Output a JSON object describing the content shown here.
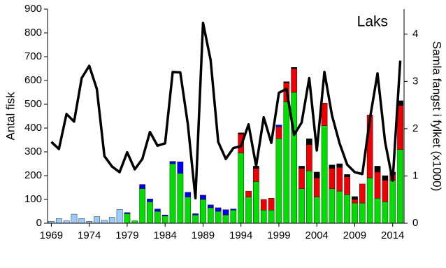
{
  "chart_data": {
    "type": "bar",
    "annotation": "Laks",
    "ylabel": "Antal fisk",
    "y2label": "Samla fangst i fylket (x1000)",
    "categories": [
      "1969",
      null,
      null,
      null,
      null,
      "1974",
      null,
      null,
      null,
      null,
      "1979",
      null,
      null,
      null,
      null,
      "1984",
      null,
      null,
      null,
      null,
      "1989",
      null,
      null,
      null,
      null,
      "1994",
      null,
      null,
      null,
      null,
      "1999",
      null,
      null,
      null,
      null,
      "2004",
      null,
      null,
      null,
      null,
      "2009",
      null,
      null,
      null,
      null,
      "2014",
      null
    ],
    "series": [
      {
        "color": "#99ccff",
        "values": [
          8,
          20,
          10,
          38,
          20,
          8,
          28,
          12,
          25,
          58,
          0,
          0,
          0,
          0,
          0,
          0,
          0,
          0,
          0,
          0,
          0,
          0,
          0,
          0,
          0,
          0,
          0,
          0,
          0,
          0,
          0,
          0,
          0,
          0,
          0,
          0,
          0,
          0,
          0,
          0,
          0,
          0,
          0,
          0,
          0,
          0,
          0
        ]
      },
      {
        "color": "#00dd00",
        "values": [
          0,
          0,
          0,
          0,
          0,
          0,
          0,
          0,
          0,
          0,
          40,
          10,
          145,
          90,
          50,
          30,
          250,
          210,
          110,
          35,
          100,
          65,
          50,
          35,
          55,
          295,
          110,
          175,
          55,
          55,
          355,
          510,
          550,
          145,
          220,
          110,
          410,
          145,
          135,
          120,
          85,
          85,
          190,
          105,
          90,
          180,
          310
        ]
      },
      {
        "color": "#ee0000",
        "values": [
          0,
          0,
          0,
          0,
          0,
          0,
          0,
          0,
          0,
          0,
          0,
          0,
          0,
          0,
          0,
          0,
          0,
          0,
          0,
          0,
          0,
          0,
          0,
          0,
          0,
          80,
          25,
          55,
          45,
          50,
          50,
          80,
          100,
          85,
          110,
          80,
          95,
          85,
          100,
          75,
          15,
          80,
          265,
          110,
          90,
          25,
          185
        ]
      },
      {
        "color": "#0000ee",
        "values": [
          0,
          0,
          0,
          0,
          0,
          0,
          0,
          0,
          0,
          0,
          5,
          0,
          18,
          12,
          10,
          5,
          10,
          48,
          20,
          5,
          18,
          12,
          15,
          22,
          5,
          0,
          0,
          0,
          0,
          0,
          8,
          0,
          0,
          0,
          0,
          0,
          0,
          0,
          0,
          0,
          0,
          0,
          0,
          0,
          0,
          0,
          0
        ]
      },
      {
        "color": "#000000",
        "values": [
          0,
          0,
          0,
          0,
          0,
          0,
          0,
          0,
          0,
          0,
          0,
          0,
          0,
          0,
          0,
          0,
          0,
          0,
          0,
          0,
          0,
          0,
          0,
          0,
          0,
          5,
          0,
          10,
          0,
          0,
          0,
          5,
          5,
          10,
          25,
          25,
          0,
          15,
          15,
          10,
          12,
          0,
          0,
          25,
          20,
          10,
          20
        ]
      },
      {
        "type": "line",
        "axis": "y2",
        "color": "#000000",
        "values": [
          1.72,
          1.57,
          2.31,
          2.15,
          3.07,
          3.33,
          2.84,
          1.42,
          1.2,
          1.08,
          1.5,
          1.14,
          1.36,
          1.93,
          1.64,
          1.69,
          3.2,
          3.19,
          2.09,
          0.53,
          4.24,
          3.45,
          1.72,
          1.36,
          1.59,
          1.63,
          2.09,
          1.21,
          2.24,
          1.7,
          2.76,
          2.84,
          1.87,
          2.13,
          3.07,
          1.54,
          3.2,
          2.28,
          1.69,
          1.24,
          1.08,
          1.04,
          2.21,
          3.17,
          1.72,
          0.9,
          3.44
        ]
      }
    ],
    "ylim": [
      0,
      900
    ],
    "yticks": [
      0,
      100,
      200,
      300,
      400,
      500,
      600,
      700,
      800,
      900
    ],
    "y2lim": [
      0,
      4.53
    ],
    "y2ticks": [
      0,
      1,
      2,
      3,
      4
    ]
  }
}
